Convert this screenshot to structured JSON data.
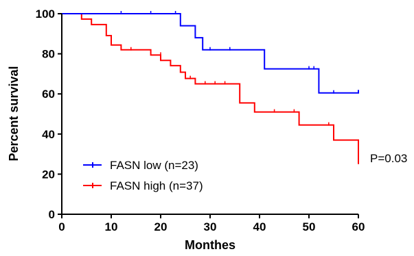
{
  "chart_data": {
    "type": "line",
    "title": "",
    "xlabel": "Monthes",
    "ylabel": "Percent survival",
    "xlim": [
      0,
      60
    ],
    "ylim": [
      0,
      100
    ],
    "xticks": [
      "0",
      "10",
      "20",
      "30",
      "40",
      "50",
      "60"
    ],
    "yticks": [
      "0",
      "20",
      "40",
      "60",
      "80",
      "100"
    ],
    "grid": false,
    "legend_position": "bottom-left",
    "annotation": "P=0.03",
    "series": [
      {
        "name": "FASN low (n=23)",
        "color": "#0000ff",
        "steps": [
          [
            0,
            100
          ],
          [
            24,
            100
          ],
          [
            24,
            94
          ],
          [
            27,
            94
          ],
          [
            27,
            88
          ],
          [
            28.5,
            88
          ],
          [
            28.5,
            82
          ],
          [
            41,
            82
          ],
          [
            41,
            72.5
          ],
          [
            52,
            72.5
          ],
          [
            52,
            60.5
          ],
          [
            60,
            60.5
          ],
          [
            60,
            62
          ]
        ],
        "censored": [
          [
            12,
            100
          ],
          [
            18,
            100
          ],
          [
            23,
            100
          ],
          [
            30,
            82
          ],
          [
            34,
            82
          ],
          [
            50,
            72.5
          ],
          [
            51,
            72.5
          ],
          [
            55,
            60.5
          ]
        ]
      },
      {
        "name": "FASN high (n=37)",
        "color": "#ff0000",
        "steps": [
          [
            0,
            100
          ],
          [
            4,
            100
          ],
          [
            4,
            97.3
          ],
          [
            6,
            97.3
          ],
          [
            6,
            94.6
          ],
          [
            9,
            94.6
          ],
          [
            9,
            89.1
          ],
          [
            10,
            89.1
          ],
          [
            10,
            84.4
          ],
          [
            12,
            84.4
          ],
          [
            12,
            82
          ],
          [
            18,
            82
          ],
          [
            18,
            79.4
          ],
          [
            20,
            79.4
          ],
          [
            20,
            76.7
          ],
          [
            22,
            76.7
          ],
          [
            22,
            74.1
          ],
          [
            24,
            74.1
          ],
          [
            24,
            70.8
          ],
          [
            25,
            70.8
          ],
          [
            25,
            67.7
          ],
          [
            27,
            67.7
          ],
          [
            27,
            65
          ],
          [
            36,
            65
          ],
          [
            36,
            55.5
          ],
          [
            39,
            55.5
          ],
          [
            39,
            51
          ],
          [
            48,
            51
          ],
          [
            48,
            44.5
          ],
          [
            55,
            44.5
          ],
          [
            55,
            37
          ],
          [
            60,
            37
          ],
          [
            60,
            25
          ]
        ],
        "censored": [
          [
            14,
            82
          ],
          [
            20,
            79.4
          ],
          [
            26,
            67.7
          ],
          [
            29,
            65
          ],
          [
            31,
            65
          ],
          [
            33,
            65
          ],
          [
            43,
            51
          ],
          [
            47,
            51
          ],
          [
            54,
            44.5
          ]
        ]
      }
    ]
  }
}
